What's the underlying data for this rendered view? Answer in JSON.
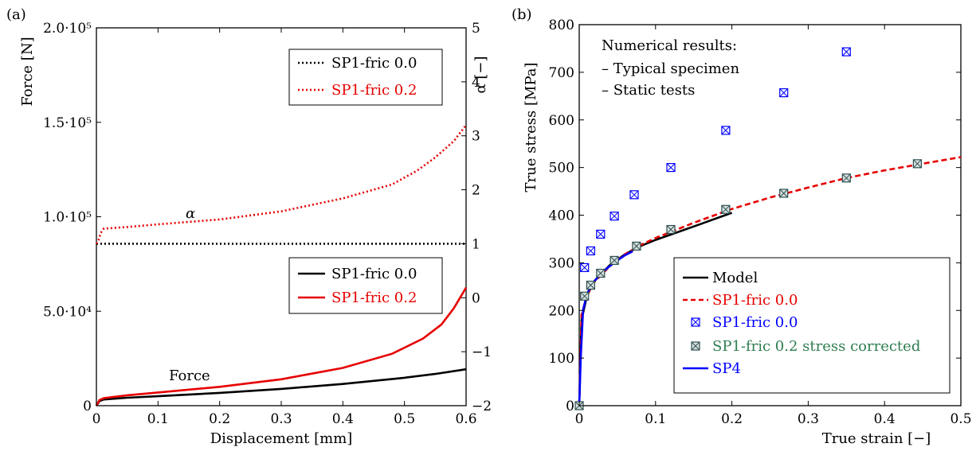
{
  "panels": {
    "a": {
      "label": "(a)"
    },
    "b": {
      "label": "(b)"
    }
  },
  "chart_data": [
    {
      "type": "line",
      "panel": "(a)",
      "xlabel": "Displacement [mm]",
      "ylabel": "Force [N]",
      "y2label": "α [−]",
      "xlim": [
        0,
        0.6
      ],
      "ylim": [
        0,
        200000
      ],
      "y2lim": [
        -2,
        5
      ],
      "xticks": [
        "0",
        "0.1",
        "0.2",
        "0.3",
        "0.4",
        "0.5",
        "0.6"
      ],
      "yticks": [
        "0",
        "5.0·10⁴",
        "1.0·10⁵",
        "1.5·10⁵",
        "2.0·10⁵"
      ],
      "y2ticks": [
        "−2",
        "−1",
        "0",
        "1",
        "2",
        "3",
        "4",
        "5"
      ],
      "annotations": [
        {
          "text": "α",
          "x": 0.15,
          "y": 90000
        },
        {
          "text": "Force",
          "x": 0.15,
          "y": 22000
        }
      ],
      "legends": [
        {
          "placement": "top-right",
          "entries": [
            "SP1-fric 0.0",
            "SP1-fric 0.2"
          ]
        },
        {
          "placement": "lower-right",
          "entries": [
            "SP1-fric 0.0",
            "SP1-fric 0.2"
          ]
        }
      ],
      "series": [
        {
          "name": "SP1-fric 0.0",
          "axis": "y2",
          "style": "dotted",
          "color": "#000000",
          "x": [
            0,
            0.6
          ],
          "y": [
            1.0,
            1.0
          ]
        },
        {
          "name": "SP1-fric 0.2",
          "axis": "y2",
          "style": "dotted",
          "color": "#e60000",
          "x": [
            0,
            0.003,
            0.007,
            0.012,
            0.05,
            0.1,
            0.2,
            0.3,
            0.4,
            0.48,
            0.52,
            0.55,
            0.58,
            0.6
          ],
          "y": [
            1.0,
            1.05,
            1.2,
            1.28,
            1.31,
            1.36,
            1.45,
            1.6,
            1.84,
            2.1,
            2.35,
            2.6,
            2.9,
            3.2
          ]
        },
        {
          "name": "SP1-fric 0.0",
          "axis": "y",
          "style": "solid",
          "color": "#000000",
          "x": [
            0,
            0.005,
            0.012,
            0.05,
            0.1,
            0.2,
            0.3,
            0.4,
            0.5,
            0.55,
            0.6
          ],
          "y": [
            0,
            2500,
            3300,
            4200,
            5000,
            6800,
            8900,
            11500,
            14800,
            16800,
            19300
          ]
        },
        {
          "name": "SP1-fric 0.2",
          "axis": "y",
          "style": "solid",
          "color": "#e60000",
          "x": [
            0,
            0.005,
            0.012,
            0.05,
            0.1,
            0.2,
            0.3,
            0.4,
            0.48,
            0.53,
            0.56,
            0.58,
            0.6
          ],
          "y": [
            0,
            3000,
            4000,
            5500,
            7000,
            10000,
            14000,
            20000,
            27500,
            35500,
            43000,
            51500,
            62500
          ]
        }
      ]
    },
    {
      "type": "line",
      "panel": "(b)",
      "xlabel": "True strain [−]",
      "ylabel": "True stress [MPa]",
      "xlim": [
        0,
        0.5
      ],
      "ylim": [
        0,
        800
      ],
      "xticks": [
        "0",
        "0.1",
        "0.2",
        "0.3",
        "0.4",
        "0.5"
      ],
      "yticks": [
        "0",
        "100",
        "200",
        "300",
        "400",
        "500",
        "600",
        "700",
        "800"
      ],
      "annotations": [
        {
          "text": "Numerical results:"
        },
        {
          "text": "– Typical specimen"
        },
        {
          "text": "– Static tests"
        }
      ],
      "legend": {
        "placement": "lower-right",
        "entries": [
          "Model",
          "SP1-fric 0.0",
          "SP1-fric 0.0",
          "SP1-fric 0.2 stress corrected",
          "SP4"
        ]
      },
      "series": [
        {
          "name": "Model",
          "style": "solid",
          "color": "#000000",
          "x": [
            0,
            0.003,
            0.01,
            0.02,
            0.04,
            0.06,
            0.08,
            0.1,
            0.13,
            0.16,
            0.2
          ],
          "y": [
            0,
            180,
            230,
            262,
            295,
            318,
            335,
            348,
            365,
            382,
            405
          ]
        },
        {
          "name": "SP1-fric 0.0",
          "style": "dashed",
          "color": "#e60000",
          "x": [
            0,
            0.003,
            0.01,
            0.02,
            0.04,
            0.06,
            0.08,
            0.1,
            0.15,
            0.2,
            0.25,
            0.3,
            0.35,
            0.4,
            0.45,
            0.5
          ],
          "y": [
            0,
            190,
            232,
            260,
            293,
            318,
            337,
            352,
            384,
            413,
            437,
            458,
            478,
            494,
            508,
            522
          ]
        },
        {
          "name": "SP1-fric 0.0",
          "style": "markers",
          "color": "#0000ff",
          "x": [
            0.007,
            0.015,
            0.028,
            0.046,
            0.072,
            0.12,
            0.192,
            0.268,
            0.35
          ],
          "y": [
            290,
            325,
            360,
            398,
            443,
            500,
            578,
            657,
            743
          ]
        },
        {
          "name": "SP1-fric 0.2 stress corrected",
          "style": "markers",
          "color": "#2e7d4f",
          "x": [
            0,
            0.007,
            0.015,
            0.028,
            0.046,
            0.075,
            0.12,
            0.192,
            0.268,
            0.35,
            0.443
          ],
          "y": [
            0,
            230,
            253,
            278,
            305,
            335,
            370,
            412,
            446,
            478,
            508
          ]
        },
        {
          "name": "SP4",
          "style": "solid",
          "color": "#0000ff",
          "x": [
            0,
            0.002,
            0.005,
            0.01,
            0.02,
            0.03,
            0.04,
            0.05,
            0.06,
            0.07
          ],
          "y": [
            0,
            100,
            200,
            235,
            262,
            280,
            293,
            305,
            316,
            324
          ]
        }
      ]
    }
  ]
}
